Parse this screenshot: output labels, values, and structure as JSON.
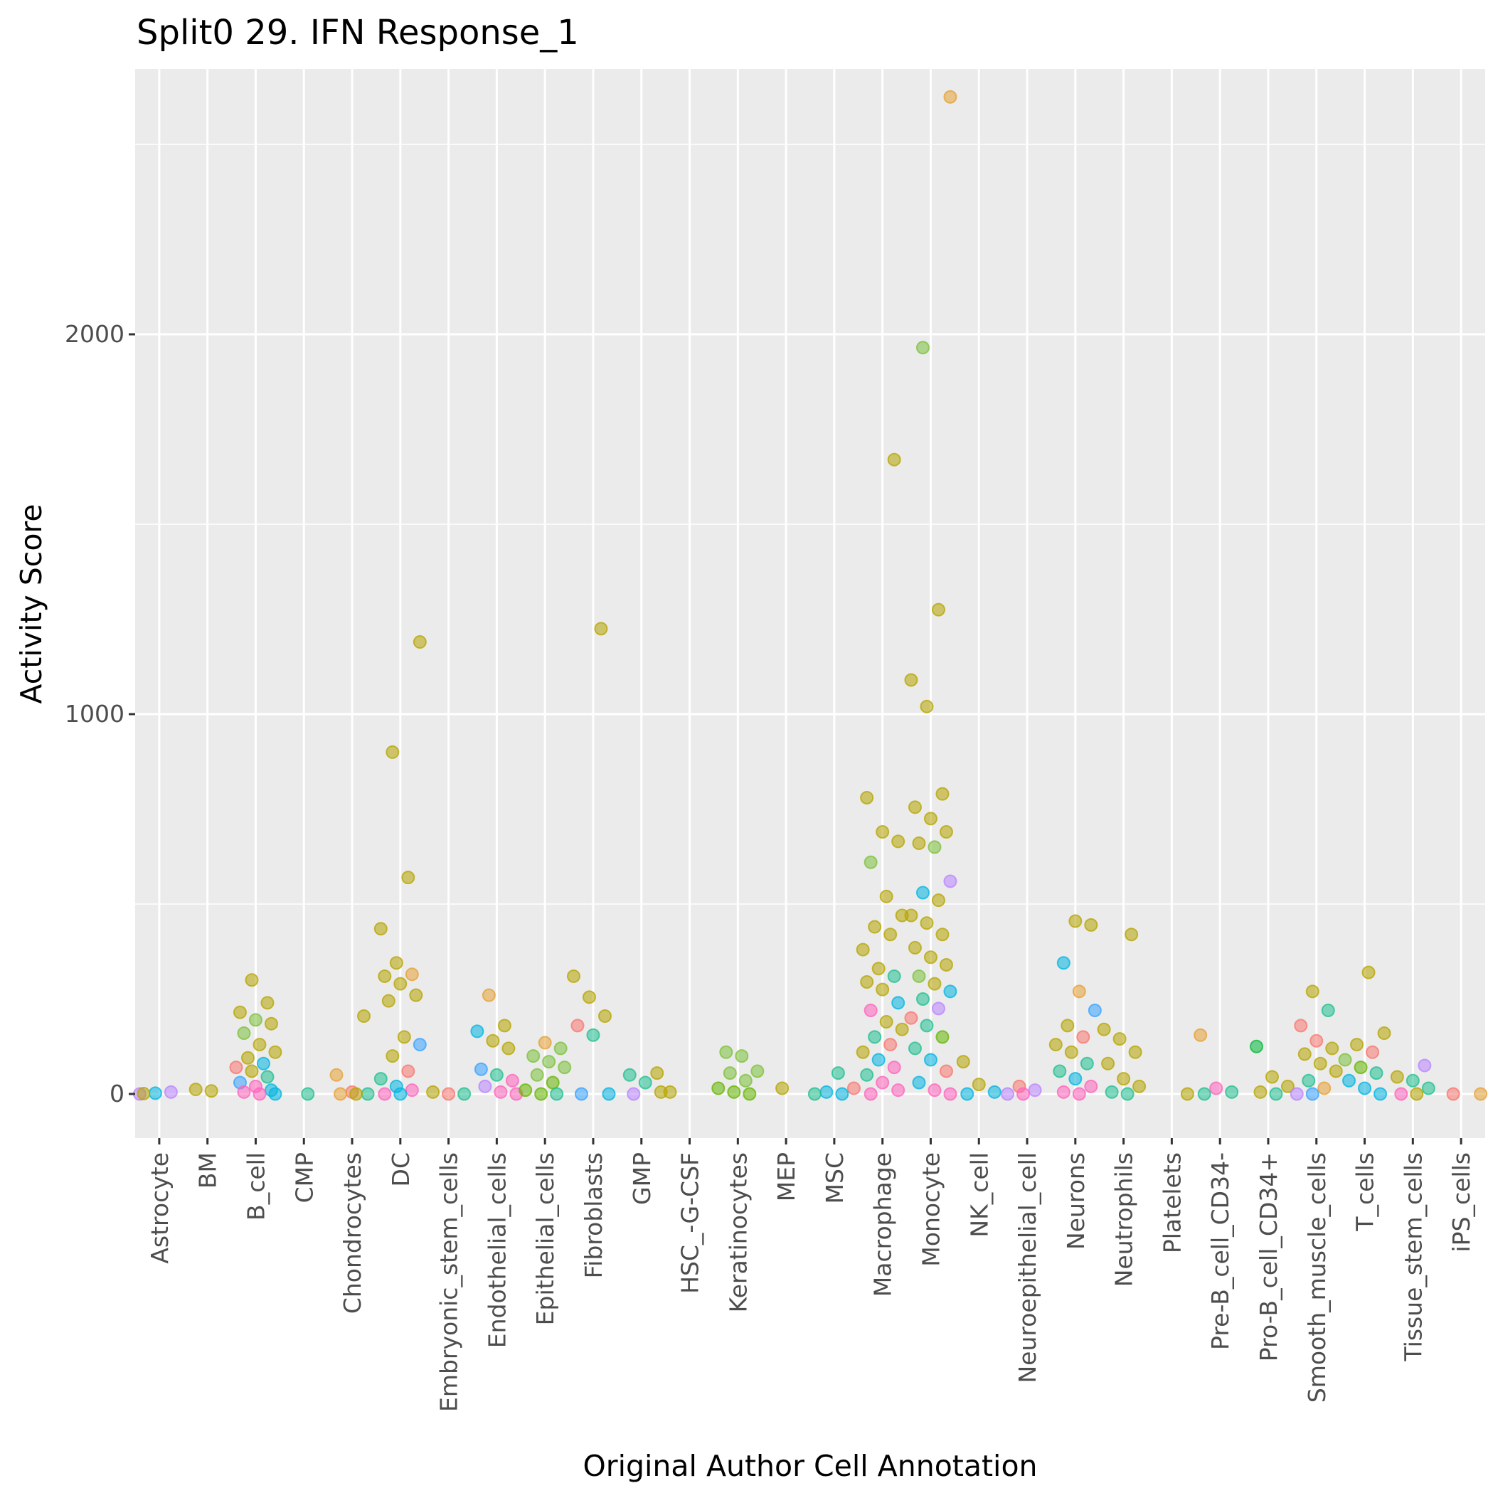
{
  "chart_data": {
    "type": "scatter",
    "title": "Split0 29. IFN Response_1",
    "xlabel": "Original Author Cell Annotation",
    "ylabel": "Activity Score",
    "ylim": [
      -130,
      2700
    ],
    "yticks": [
      0,
      1000,
      2000
    ],
    "ytick_labels": [
      "0",
      "1000",
      "2000"
    ],
    "grid": true,
    "legend": "none",
    "categories": [
      "Astrocyte",
      "BM",
      "B_cell",
      "CMP",
      "Chondrocytes",
      "DC",
      "Embryonic_stem_cells",
      "Endothelial_cells",
      "Epithelial_cells",
      "Fibroblasts",
      "GMP",
      "HSC_-G-CSF",
      "Keratinocytes",
      "MEP",
      "MSC",
      "Macrophage",
      "Monocyte",
      "NK_cell",
      "Neuroepithelial_cell",
      "Neurons",
      "Neutrophils",
      "Platelets",
      "Pre-B_cell_CD34-",
      "Pro-B_cell_CD34+",
      "Smooth_muscle_cells",
      "T_cells",
      "Tissue_stem_cells",
      "iPS_cells"
    ],
    "palette": {
      "olive": "#b5a400",
      "orange": "#e6a033",
      "green": "#64b400",
      "lightgreen": "#7cc03a",
      "teal": "#1fbf8f",
      "cyan": "#00b4e0",
      "blue": "#35a2ff",
      "purple": "#b983ff",
      "pink": "#ff62bc",
      "salmon": "#f8766d",
      "darkgreen": "#00ba38"
    },
    "series": [
      {
        "category": "Astrocyte",
        "points": [
          [
            0,
            "purple"
          ],
          [
            2,
            "cyan"
          ],
          [
            5,
            "purple"
          ],
          [
            1,
            "olive"
          ]
        ]
      },
      {
        "category": "BM",
        "points": [
          [
            12,
            "olive"
          ],
          [
            8,
            "olive"
          ]
        ]
      },
      {
        "category": "B_cell",
        "points": [
          [
            300,
            "olive"
          ],
          [
            240,
            "olive"
          ],
          [
            215,
            "olive"
          ],
          [
            195,
            "lightgreen"
          ],
          [
            185,
            "olive"
          ],
          [
            160,
            "lightgreen"
          ],
          [
            130,
            "olive"
          ],
          [
            110,
            "olive"
          ],
          [
            95,
            "olive"
          ],
          [
            80,
            "cyan"
          ],
          [
            70,
            "salmon"
          ],
          [
            60,
            "olive"
          ],
          [
            45,
            "teal"
          ],
          [
            30,
            "blue"
          ],
          [
            20,
            "pink"
          ],
          [
            10,
            "cyan"
          ],
          [
            5,
            "pink"
          ],
          [
            0,
            "pink"
          ],
          [
            0,
            "cyan"
          ]
        ]
      },
      {
        "category": "CMP",
        "points": [
          [
            0,
            "teal"
          ]
        ]
      },
      {
        "category": "Chondrocytes",
        "points": [
          [
            205,
            "olive"
          ],
          [
            50,
            "orange"
          ],
          [
            5,
            "salmon"
          ],
          [
            0,
            "teal"
          ],
          [
            0,
            "orange"
          ],
          [
            0,
            "olive"
          ]
        ]
      },
      {
        "category": "DC",
        "points": [
          [
            1190,
            "olive"
          ],
          [
            900,
            "olive"
          ],
          [
            570,
            "olive"
          ],
          [
            435,
            "olive"
          ],
          [
            345,
            "olive"
          ],
          [
            315,
            "orange"
          ],
          [
            310,
            "olive"
          ],
          [
            290,
            "olive"
          ],
          [
            260,
            "olive"
          ],
          [
            245,
            "olive"
          ],
          [
            150,
            "olive"
          ],
          [
            130,
            "blue"
          ],
          [
            100,
            "olive"
          ],
          [
            60,
            "salmon"
          ],
          [
            40,
            "teal"
          ],
          [
            20,
            "cyan"
          ],
          [
            10,
            "pink"
          ],
          [
            0,
            "pink"
          ],
          [
            0,
            "cyan"
          ]
        ]
      },
      {
        "category": "Embryonic_stem_cells",
        "points": [
          [
            5,
            "olive"
          ],
          [
            0,
            "salmon"
          ],
          [
            0,
            "teal"
          ]
        ]
      },
      {
        "category": "Endothelial_cells",
        "points": [
          [
            260,
            "orange"
          ],
          [
            180,
            "olive"
          ],
          [
            165,
            "cyan"
          ],
          [
            140,
            "olive"
          ],
          [
            120,
            "olive"
          ],
          [
            65,
            "blue"
          ],
          [
            50,
            "teal"
          ],
          [
            35,
            "pink"
          ],
          [
            20,
            "purple"
          ],
          [
            5,
            "pink"
          ],
          [
            0,
            "pink"
          ]
        ]
      },
      {
        "category": "Epithelial_cells",
        "points": [
          [
            135,
            "orange"
          ],
          [
            120,
            "lightgreen"
          ],
          [
            100,
            "lightgreen"
          ],
          [
            85,
            "lightgreen"
          ],
          [
            70,
            "lightgreen"
          ],
          [
            50,
            "lightgreen"
          ],
          [
            30,
            "green"
          ],
          [
            10,
            "green"
          ],
          [
            0,
            "green"
          ],
          [
            0,
            "teal"
          ]
        ]
      },
      {
        "category": "Fibroblasts",
        "points": [
          [
            1225,
            "olive"
          ],
          [
            310,
            "olive"
          ],
          [
            255,
            "olive"
          ],
          [
            205,
            "olive"
          ],
          [
            180,
            "salmon"
          ],
          [
            155,
            "teal"
          ],
          [
            0,
            "cyan"
          ],
          [
            0,
            "blue"
          ]
        ]
      },
      {
        "category": "GMP",
        "points": [
          [
            55,
            "olive"
          ],
          [
            50,
            "teal"
          ],
          [
            30,
            "teal"
          ],
          [
            5,
            "olive"
          ],
          [
            0,
            "purple"
          ]
        ]
      },
      {
        "category": "HSC_-G-CSF",
        "points": [
          [
            5,
            "olive"
          ]
        ]
      },
      {
        "category": "Keratinocytes",
        "points": [
          [
            110,
            "lightgreen"
          ],
          [
            100,
            "lightgreen"
          ],
          [
            60,
            "lightgreen"
          ],
          [
            55,
            "lightgreen"
          ],
          [
            35,
            "lightgreen"
          ],
          [
            15,
            "green"
          ],
          [
            5,
            "green"
          ],
          [
            0,
            "green"
          ]
        ]
      },
      {
        "category": "MEP",
        "points": [
          [
            15,
            "olive"
          ]
        ]
      },
      {
        "category": "MSC",
        "points": [
          [
            55,
            "teal"
          ],
          [
            15,
            "salmon"
          ],
          [
            5,
            "cyan"
          ],
          [
            0,
            "cyan"
          ],
          [
            0,
            "teal"
          ]
        ]
      },
      {
        "category": "Macrophage",
        "points": [
          [
            1670,
            "olive"
          ],
          [
            780,
            "olive"
          ],
          [
            690,
            "olive"
          ],
          [
            665,
            "olive"
          ],
          [
            610,
            "lightgreen"
          ],
          [
            520,
            "olive"
          ],
          [
            470,
            "olive"
          ],
          [
            440,
            "olive"
          ],
          [
            420,
            "olive"
          ],
          [
            380,
            "olive"
          ],
          [
            330,
            "olive"
          ],
          [
            310,
            "teal"
          ],
          [
            295,
            "olive"
          ],
          [
            275,
            "olive"
          ],
          [
            240,
            "cyan"
          ],
          [
            220,
            "pink"
          ],
          [
            190,
            "olive"
          ],
          [
            170,
            "olive"
          ],
          [
            150,
            "teal"
          ],
          [
            130,
            "salmon"
          ],
          [
            110,
            "olive"
          ],
          [
            90,
            "cyan"
          ],
          [
            70,
            "pink"
          ],
          [
            50,
            "teal"
          ],
          [
            30,
            "pink"
          ],
          [
            10,
            "pink"
          ],
          [
            0,
            "pink"
          ]
        ]
      },
      {
        "category": "Monocyte",
        "points": [
          [
            2625,
            "orange"
          ],
          [
            1965,
            "lightgreen"
          ],
          [
            1275,
            "olive"
          ],
          [
            1090,
            "olive"
          ],
          [
            1020,
            "olive"
          ],
          [
            790,
            "olive"
          ],
          [
            755,
            "olive"
          ],
          [
            725,
            "olive"
          ],
          [
            690,
            "olive"
          ],
          [
            660,
            "olive"
          ],
          [
            650,
            "lightgreen"
          ],
          [
            560,
            "purple"
          ],
          [
            530,
            "cyan"
          ],
          [
            510,
            "olive"
          ],
          [
            470,
            "olive"
          ],
          [
            450,
            "olive"
          ],
          [
            420,
            "olive"
          ],
          [
            385,
            "olive"
          ],
          [
            360,
            "olive"
          ],
          [
            340,
            "olive"
          ],
          [
            310,
            "lightgreen"
          ],
          [
            290,
            "olive"
          ],
          [
            270,
            "cyan"
          ],
          [
            250,
            "teal"
          ],
          [
            225,
            "purple"
          ],
          [
            200,
            "salmon"
          ],
          [
            180,
            "teal"
          ],
          [
            150,
            "green"
          ],
          [
            120,
            "teal"
          ],
          [
            90,
            "cyan"
          ],
          [
            60,
            "salmon"
          ],
          [
            30,
            "cyan"
          ],
          [
            10,
            "pink"
          ],
          [
            0,
            "pink"
          ]
        ]
      },
      {
        "category": "NK_cell",
        "points": [
          [
            85,
            "olive"
          ],
          [
            25,
            "olive"
          ],
          [
            5,
            "cyan"
          ],
          [
            0,
            "cyan"
          ]
        ]
      },
      {
        "category": "Neuroepithelial_cell",
        "points": [
          [
            20,
            "salmon"
          ],
          [
            10,
            "purple"
          ],
          [
            0,
            "purple"
          ],
          [
            0,
            "pink"
          ]
        ]
      },
      {
        "category": "Neurons",
        "points": [
          [
            455,
            "olive"
          ],
          [
            445,
            "olive"
          ],
          [
            345,
            "cyan"
          ],
          [
            270,
            "orange"
          ],
          [
            220,
            "blue"
          ],
          [
            180,
            "olive"
          ],
          [
            150,
            "salmon"
          ],
          [
            130,
            "olive"
          ],
          [
            110,
            "olive"
          ],
          [
            80,
            "teal"
          ],
          [
            60,
            "teal"
          ],
          [
            40,
            "cyan"
          ],
          [
            20,
            "pink"
          ],
          [
            5,
            "pink"
          ],
          [
            0,
            "pink"
          ]
        ]
      },
      {
        "category": "Neutrophils",
        "points": [
          [
            420,
            "olive"
          ],
          [
            170,
            "olive"
          ],
          [
            145,
            "olive"
          ],
          [
            110,
            "olive"
          ],
          [
            80,
            "olive"
          ],
          [
            40,
            "olive"
          ],
          [
            20,
            "olive"
          ],
          [
            5,
            "teal"
          ],
          [
            0,
            "teal"
          ]
        ]
      },
      {
        "category": "Platelets",
        "points": [
          [
            0,
            "olive"
          ]
        ]
      },
      {
        "category": "Pre-B_cell_CD34-",
        "points": [
          [
            155,
            "orange"
          ],
          [
            15,
            "pink"
          ],
          [
            5,
            "teal"
          ],
          [
            0,
            "teal"
          ]
        ]
      },
      {
        "category": "Pro-B_cell_CD34+",
        "points": [
          [
            125,
            "darkgreen"
          ],
          [
            45,
            "olive"
          ],
          [
            20,
            "olive"
          ],
          [
            5,
            "olive"
          ],
          [
            0,
            "teal"
          ]
        ]
      },
      {
        "category": "Smooth_muscle_cells",
        "points": [
          [
            270,
            "olive"
          ],
          [
            220,
            "teal"
          ],
          [
            180,
            "salmon"
          ],
          [
            140,
            "salmon"
          ],
          [
            120,
            "olive"
          ],
          [
            105,
            "olive"
          ],
          [
            80,
            "olive"
          ],
          [
            60,
            "olive"
          ],
          [
            35,
            "teal"
          ],
          [
            15,
            "orange"
          ],
          [
            0,
            "purple"
          ],
          [
            0,
            "blue"
          ]
        ]
      },
      {
        "category": "T_cells",
        "points": [
          [
            320,
            "olive"
          ],
          [
            160,
            "olive"
          ],
          [
            130,
            "olive"
          ],
          [
            110,
            "salmon"
          ],
          [
            90,
            "lightgreen"
          ],
          [
            70,
            "green"
          ],
          [
            55,
            "teal"
          ],
          [
            35,
            "cyan"
          ],
          [
            15,
            "cyan"
          ],
          [
            0,
            "cyan"
          ]
        ]
      },
      {
        "category": "Tissue_stem_cells",
        "points": [
          [
            75,
            "purple"
          ],
          [
            45,
            "olive"
          ],
          [
            35,
            "teal"
          ],
          [
            15,
            "teal"
          ],
          [
            0,
            "pink"
          ],
          [
            0,
            "olive"
          ]
        ]
      },
      {
        "category": "iPS_cells",
        "points": [
          [
            0,
            "orange"
          ],
          [
            0,
            "salmon"
          ]
        ]
      }
    ]
  }
}
